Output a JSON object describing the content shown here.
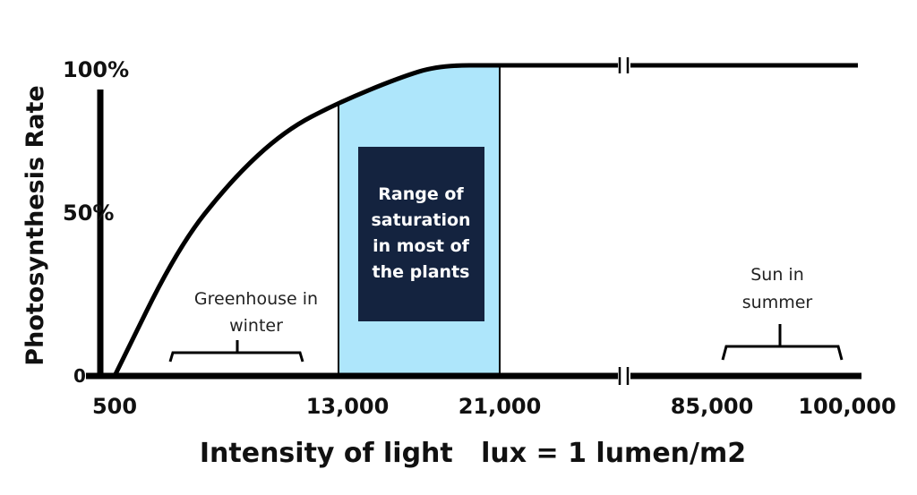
{
  "chart_data": {
    "type": "line",
    "title": "",
    "xlabel": "Intensity of light   lux = 1 lumen/m2",
    "ylabel": "Photosynthesis Rate",
    "x_scale": "broken",
    "x_ticks": [
      "500",
      "13,000",
      "21,000",
      "85,000",
      "100,000"
    ],
    "y_ticks": [
      "0",
      "50%",
      "100%"
    ],
    "ylim": [
      0,
      100
    ],
    "series": [
      {
        "x": [
          500,
          4000,
          7000,
          10000,
          13000,
          16000,
          18000,
          21000,
          85000,
          100000
        ],
        "y": [
          0,
          41,
          63,
          79,
          88,
          96,
          100,
          100,
          100,
          100
        ]
      }
    ],
    "shaded_range": {
      "from": 13000,
      "to": 21000,
      "color": "#aee6fb"
    },
    "annotations": {
      "saturation_box": [
        "Range of",
        "saturation",
        "in most of",
        "the plants"
      ],
      "greenhouse": [
        "Greenhouse in",
        "winter"
      ],
      "sun": [
        "Sun in",
        "summer"
      ]
    },
    "colors": {
      "line": "#000000",
      "box": "#14233f",
      "shade": "#aee6fb"
    }
  }
}
